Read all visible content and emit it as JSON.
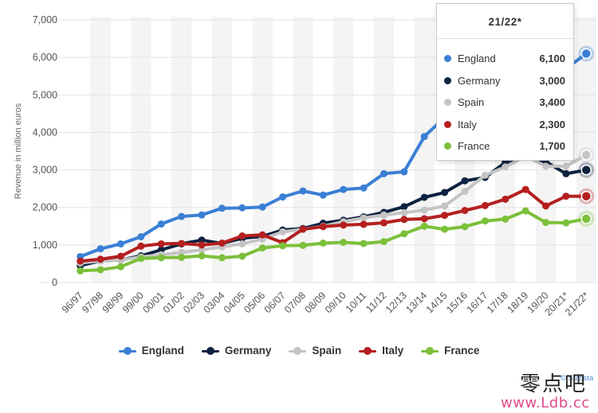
{
  "chart_data": {
    "type": "line",
    "xlabel": "",
    "ylabel": "Revenue in million euros",
    "ylim": [
      0,
      7000
    ],
    "yticks": [
      "0",
      "1,000",
      "2,000",
      "3,000",
      "4,000",
      "5,000",
      "6,000",
      "7,000"
    ],
    "categories": [
      "96/97",
      "97/98",
      "98/99",
      "99/00",
      "00/01",
      "01/02",
      "02/03",
      "03/04",
      "04/05",
      "05/06",
      "06/07",
      "07/08",
      "08/09",
      "09/10",
      "10/11",
      "11/12",
      "12/13",
      "13/14",
      "14/15",
      "15/16",
      "16/17",
      "17/18",
      "18/19",
      "19/20",
      "20/21*",
      "21/22*"
    ],
    "grid": "horizontal gridlines, alternating vertical bands",
    "legend_position": "bottom",
    "series": [
      {
        "name": "England",
        "color": "#3a7fd5",
        "values": [
          690,
          900,
          1030,
          1220,
          1560,
          1760,
          1800,
          1980,
          1990,
          2010,
          2280,
          2440,
          2330,
          2480,
          2520,
          2900,
          2950,
          3890,
          4400,
          4860,
          5500,
          5800,
          5900,
          5500,
          5700,
          6100
        ]
      },
      {
        "name": "Germany",
        "color": "#0d2240",
        "values": [
          450,
          580,
          600,
          710,
          870,
          1030,
          1130,
          1040,
          1180,
          1230,
          1400,
          1440,
          1580,
          1660,
          1750,
          1870,
          2020,
          2270,
          2400,
          2710,
          2800,
          3200,
          3360,
          3220,
          2900,
          3000
        ]
      },
      {
        "name": "Spain",
        "color": "#c4c4c4",
        "values": [
          520,
          580,
          600,
          680,
          740,
          800,
          870,
          950,
          1030,
          1160,
          1350,
          1420,
          1500,
          1620,
          1720,
          1800,
          1860,
          1930,
          2040,
          2430,
          2860,
          3080,
          3370,
          3100,
          3100,
          3400
        ]
      },
      {
        "name": "Italy",
        "color": "#b51f1f",
        "values": [
          570,
          620,
          700,
          970,
          1030,
          1040,
          1000,
          1050,
          1240,
          1270,
          1060,
          1420,
          1490,
          1530,
          1550,
          1590,
          1680,
          1700,
          1790,
          1920,
          2050,
          2220,
          2480,
          2040,
          2300,
          2300
        ]
      },
      {
        "name": "France",
        "color": "#7cc03a",
        "values": [
          310,
          340,
          420,
          640,
          660,
          670,
          710,
          660,
          700,
          920,
          980,
          990,
          1050,
          1070,
          1040,
          1090,
          1300,
          1500,
          1420,
          1490,
          1640,
          1690,
          1910,
          1600,
          1590,
          1700
        ]
      }
    ]
  },
  "tooltip": {
    "title": "21/22*",
    "rows": [
      {
        "name": "England",
        "value": "6,100",
        "color": "#3a7fd5"
      },
      {
        "name": "Germany",
        "value": "3,000",
        "color": "#0d2240"
      },
      {
        "name": "Spain",
        "value": "3,400",
        "color": "#c4c4c4"
      },
      {
        "name": "Italy",
        "value": "2,300",
        "color": "#b51f1f"
      },
      {
        "name": "France",
        "value": "1,700",
        "color": "#7cc03a"
      }
    ]
  },
  "credit": "© Statista",
  "watermark": {
    "chinese": "零点吧",
    "url": "www.Ldb.cc"
  }
}
